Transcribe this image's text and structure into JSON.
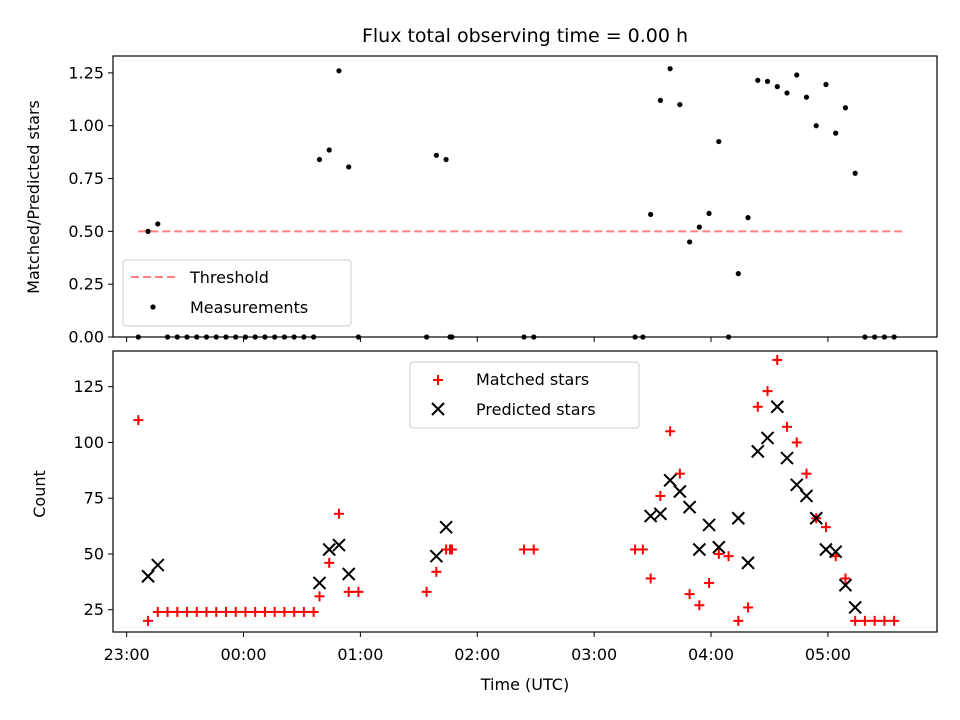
{
  "chart_data": [
    {
      "type": "scatter",
      "title": "Flux total observing time = 0.00 h",
      "xlabel": "",
      "ylabel": "Matched/Predicted stars",
      "xlim": [
        "22:53",
        "05:56"
      ],
      "ylim": [
        0,
        1.33
      ],
      "yticks": [
        0.0,
        0.25,
        0.5,
        0.75,
        1.0,
        1.25
      ],
      "ytick_labels": [
        "0.00",
        "0.25",
        "0.50",
        "0.75",
        "1.00",
        "1.25"
      ],
      "legend_position": "lower-left",
      "series": [
        {
          "name": "Threshold",
          "style": "dashed-line",
          "color": "#ff7f7f",
          "points": [
            [
              "23:06",
              0.5
            ],
            [
              "05:38",
              0.5
            ]
          ]
        },
        {
          "name": "Measurements",
          "style": "dot",
          "color": "#000000",
          "points": [
            [
              "23:06",
              0.0
            ],
            [
              "23:11",
              0.5
            ],
            [
              "23:16",
              0.535
            ],
            [
              "23:21",
              0.0
            ],
            [
              "23:26",
              0.0
            ],
            [
              "23:31",
              0.0
            ],
            [
              "23:36",
              0.0
            ],
            [
              "23:41",
              0.0
            ],
            [
              "23:46",
              0.0
            ],
            [
              "23:51",
              0.0
            ],
            [
              "23:56",
              0.0
            ],
            [
              "00:01",
              0.0
            ],
            [
              "00:06",
              0.0
            ],
            [
              "00:11",
              0.0
            ],
            [
              "00:16",
              0.0
            ],
            [
              "00:21",
              0.0
            ],
            [
              "00:26",
              0.0
            ],
            [
              "00:31",
              0.0
            ],
            [
              "00:36",
              0.0
            ],
            [
              "00:39",
              0.84
            ],
            [
              "00:44",
              0.885
            ],
            [
              "00:49",
              1.26
            ],
            [
              "00:54",
              0.805
            ],
            [
              "00:59",
              0.0
            ],
            [
              "01:34",
              0.0
            ],
            [
              "01:39",
              0.86
            ],
            [
              "01:44",
              0.84
            ],
            [
              "01:46",
              0.0
            ],
            [
              "01:47",
              0.0
            ],
            [
              "02:24",
              0.0
            ],
            [
              "02:29",
              0.0
            ],
            [
              "03:21",
              0.0
            ],
            [
              "03:25",
              0.0
            ],
            [
              "03:29",
              0.58
            ],
            [
              "03:34",
              1.12
            ],
            [
              "03:39",
              1.27
            ],
            [
              "03:44",
              1.1
            ],
            [
              "03:49",
              0.45
            ],
            [
              "03:54",
              0.52
            ],
            [
              "03:59",
              0.585
            ],
            [
              "04:04",
              0.925
            ],
            [
              "04:09",
              0.0
            ],
            [
              "04:14",
              0.3
            ],
            [
              "04:19",
              0.565
            ],
            [
              "04:24",
              1.215
            ],
            [
              "04:29",
              1.21
            ],
            [
              "04:34",
              1.185
            ],
            [
              "04:39",
              1.155
            ],
            [
              "04:44",
              1.24
            ],
            [
              "04:49",
              1.135
            ],
            [
              "04:54",
              1.0
            ],
            [
              "04:59",
              1.195
            ],
            [
              "05:04",
              0.965
            ],
            [
              "05:09",
              1.085
            ],
            [
              "05:14",
              0.775
            ],
            [
              "05:19",
              0.0
            ],
            [
              "05:24",
              0.0
            ],
            [
              "05:29",
              0.0
            ],
            [
              "05:34",
              0.0
            ]
          ]
        }
      ]
    },
    {
      "type": "scatter",
      "title": "",
      "xlabel": "Time (UTC)",
      "ylabel": "Count",
      "xlim": [
        "22:53",
        "05:56"
      ],
      "ylim": [
        15,
        141
      ],
      "yticks": [
        25,
        50,
        75,
        100,
        125
      ],
      "ytick_labels": [
        "25",
        "50",
        "75",
        "100",
        "125"
      ],
      "xticks": [
        "23:00",
        "00:00",
        "01:00",
        "02:00",
        "03:00",
        "04:00",
        "05:00"
      ],
      "xtick_labels": [
        "23:00",
        "00:00",
        "01:00",
        "02:00",
        "03:00",
        "04:00",
        "05:00"
      ],
      "legend_position": "upper-center",
      "series": [
        {
          "name": "Matched stars",
          "style": "plus",
          "color": "#ff0000",
          "points": [
            [
              "23:06",
              110
            ],
            [
              "23:11",
              20
            ],
            [
              "23:16",
              24
            ],
            [
              "23:21",
              24
            ],
            [
              "23:26",
              24
            ],
            [
              "23:31",
              24
            ],
            [
              "23:36",
              24
            ],
            [
              "23:41",
              24
            ],
            [
              "23:46",
              24
            ],
            [
              "23:51",
              24
            ],
            [
              "23:56",
              24
            ],
            [
              "00:01",
              24
            ],
            [
              "00:06",
              24
            ],
            [
              "00:11",
              24
            ],
            [
              "00:16",
              24
            ],
            [
              "00:21",
              24
            ],
            [
              "00:26",
              24
            ],
            [
              "00:31",
              24
            ],
            [
              "00:36",
              24
            ],
            [
              "00:39",
              31
            ],
            [
              "00:44",
              46
            ],
            [
              "00:49",
              68
            ],
            [
              "00:54",
              33
            ],
            [
              "00:59",
              33
            ],
            [
              "01:34",
              33
            ],
            [
              "01:39",
              42
            ],
            [
              "01:44",
              52
            ],
            [
              "01:46",
              52
            ],
            [
              "01:47",
              52
            ],
            [
              "02:24",
              52
            ],
            [
              "02:29",
              52
            ],
            [
              "03:21",
              52
            ],
            [
              "03:25",
              52
            ],
            [
              "03:29",
              39
            ],
            [
              "03:34",
              76
            ],
            [
              "03:39",
              105
            ],
            [
              "03:44",
              86
            ],
            [
              "03:49",
              32
            ],
            [
              "03:54",
              27
            ],
            [
              "03:59",
              37
            ],
            [
              "04:04",
              50
            ],
            [
              "04:09",
              49
            ],
            [
              "04:14",
              20
            ],
            [
              "04:19",
              26
            ],
            [
              "04:24",
              116
            ],
            [
              "04:29",
              123
            ],
            [
              "04:34",
              137
            ],
            [
              "04:39",
              107
            ],
            [
              "04:44",
              100
            ],
            [
              "04:49",
              86
            ],
            [
              "04:54",
              66
            ],
            [
              "04:59",
              62
            ],
            [
              "05:04",
              49
            ],
            [
              "05:09",
              39
            ],
            [
              "05:14",
              20
            ],
            [
              "05:19",
              20
            ],
            [
              "05:24",
              20
            ],
            [
              "05:29",
              20
            ],
            [
              "05:34",
              20
            ]
          ]
        },
        {
          "name": "Predicted stars",
          "style": "x",
          "color": "#000000",
          "points": [
            [
              "23:11",
              40
            ],
            [
              "23:16",
              45
            ],
            [
              "00:39",
              37
            ],
            [
              "00:44",
              52
            ],
            [
              "00:49",
              54
            ],
            [
              "00:54",
              41
            ],
            [
              "01:39",
              49
            ],
            [
              "01:44",
              62
            ],
            [
              "03:29",
              67
            ],
            [
              "03:34",
              68
            ],
            [
              "03:39",
              83
            ],
            [
              "03:44",
              78
            ],
            [
              "03:49",
              71
            ],
            [
              "03:54",
              52
            ],
            [
              "03:59",
              63
            ],
            [
              "04:04",
              53
            ],
            [
              "04:14",
              66
            ],
            [
              "04:19",
              46
            ],
            [
              "04:24",
              96
            ],
            [
              "04:29",
              102
            ],
            [
              "04:34",
              116
            ],
            [
              "04:39",
              93
            ],
            [
              "04:44",
              81
            ],
            [
              "04:49",
              76
            ],
            [
              "04:54",
              66
            ],
            [
              "04:59",
              52
            ],
            [
              "05:04",
              51
            ],
            [
              "05:09",
              36
            ],
            [
              "05:14",
              26
            ]
          ]
        }
      ]
    }
  ]
}
